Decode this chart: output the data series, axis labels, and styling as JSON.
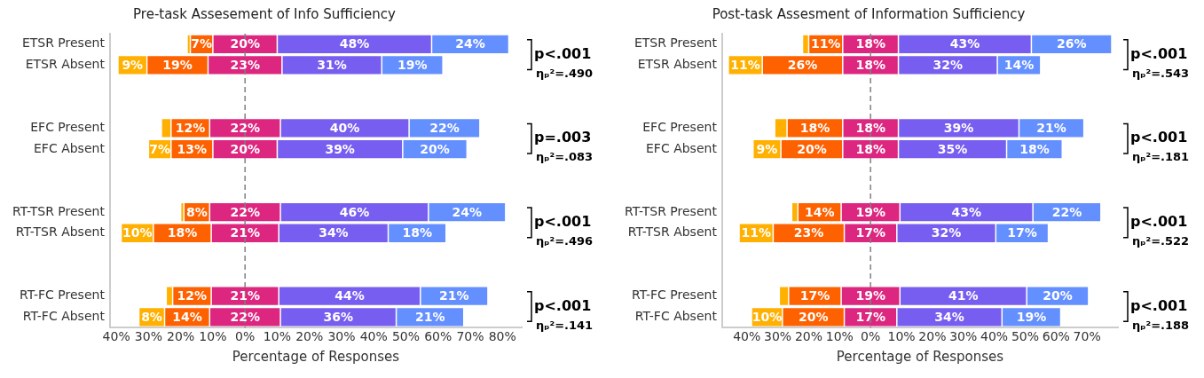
{
  "chart_data": [
    {
      "type": "bar",
      "orientation": "horizontal",
      "title": "Pre-task Assesement of Info Sufficiency",
      "xlabel": "Percentage of Responses",
      "categories": [
        "ETSR Present",
        "ETSR Absent",
        null,
        null,
        "EFC Present",
        "EFC Absent",
        null,
        null,
        "RT-TSR Present",
        "RT-TSR Absent",
        null,
        null,
        "RT-FC Present",
        "RT-FC Absent"
      ],
      "series": [
        {
          "color": "#ffb000",
          "values": [
            1,
            9,
            null,
            null,
            3,
            7,
            null,
            null,
            1,
            10,
            null,
            null,
            2,
            8
          ],
          "base": [
            -18,
            -39.5,
            null,
            null,
            -26,
            -30,
            null,
            null,
            -20,
            -38.5,
            null,
            null,
            -24.5,
            -33
          ],
          "value_labels": [
            null,
            "9%",
            null,
            null,
            null,
            "7%",
            null,
            null,
            null,
            "10%",
            null,
            null,
            null,
            "8%"
          ]
        },
        {
          "color": "#fe6100",
          "values": [
            7,
            19,
            null,
            null,
            12,
            13,
            null,
            null,
            8,
            18,
            null,
            null,
            12,
            14
          ],
          "base": [
            -17,
            -30.5,
            null,
            null,
            -23,
            -23,
            null,
            null,
            -19,
            -28.5,
            null,
            null,
            -22.5,
            -25
          ],
          "value_labels": [
            "7%",
            "19%",
            null,
            null,
            "12%",
            "13%",
            null,
            null,
            "8%",
            "18%",
            null,
            null,
            "12%",
            "14%"
          ]
        },
        {
          "color": "#dc267f",
          "values": [
            20,
            23,
            null,
            null,
            22,
            20,
            null,
            null,
            22,
            21,
            null,
            null,
            21,
            22
          ],
          "base": [
            -10,
            -11.5,
            null,
            null,
            -11,
            -10,
            null,
            null,
            -11,
            -10.5,
            null,
            null,
            -10.5,
            -11
          ],
          "value_labels": [
            "20%",
            "23%",
            null,
            null,
            "22%",
            "20%",
            null,
            null,
            "22%",
            "21%",
            null,
            null,
            "21%",
            "22%"
          ]
        },
        {
          "color": "#785ef0",
          "values": [
            48,
            31,
            null,
            null,
            40,
            39,
            null,
            null,
            46,
            34,
            null,
            null,
            44,
            36
          ],
          "base": [
            10,
            11.5,
            null,
            null,
            11,
            10,
            null,
            null,
            11,
            10.5,
            null,
            null,
            10.5,
            11
          ],
          "value_labels": [
            "48%",
            "31%",
            null,
            null,
            "40%",
            "39%",
            null,
            null,
            "46%",
            "34%",
            null,
            null,
            "44%",
            "36%"
          ]
        },
        {
          "color": "#648fff",
          "values": [
            24,
            19,
            null,
            null,
            22,
            20,
            null,
            null,
            24,
            18,
            null,
            null,
            21,
            21
          ],
          "base": [
            58,
            42.5,
            null,
            null,
            51,
            49,
            null,
            null,
            57,
            44.5,
            null,
            null,
            54.5,
            47
          ],
          "value_labels": [
            "24%",
            "19%",
            null,
            null,
            "22%",
            "20%",
            null,
            null,
            "24%",
            "18%",
            null,
            null,
            "21%",
            "21%"
          ]
        }
      ],
      "xlim": [
        -42,
        86
      ],
      "xticks": [
        {
          "value": -40,
          "label": "40%"
        },
        {
          "value": -30,
          "label": "30%"
        },
        {
          "value": -20,
          "label": "20%"
        },
        {
          "value": -10,
          "label": "10%"
        },
        {
          "value": 0,
          "label": "0%"
        },
        {
          "value": 10,
          "label": "10%"
        },
        {
          "value": 20,
          "label": "20%"
        },
        {
          "value": 30,
          "label": "30%"
        },
        {
          "value": 40,
          "label": "40%"
        },
        {
          "value": 50,
          "label": "50%"
        },
        {
          "value": 60,
          "label": "60%"
        },
        {
          "value": 70,
          "label": "70%"
        },
        {
          "value": 80,
          "label": "80%"
        }
      ],
      "ref_lines": [
        {
          "axis": "x",
          "value": 0,
          "color": "#808080",
          "line_style": "dashed"
        }
      ],
      "annotations": [
        "p<.001",
        "ηₚ²=.490",
        "p=.003",
        "ηₚ²=.083",
        "p<.001",
        "ηₚ²=.496",
        "p<.001",
        "ηₚ²=.141"
      ],
      "grid": false,
      "legend": false
    },
    {
      "type": "bar",
      "orientation": "horizontal",
      "title": "Post-task Assesment of Information Sufficiency",
      "xlabel": "Percentage of Responses",
      "categories": [
        "ETSR Present",
        "ETSR Absent",
        null,
        null,
        "EFC Present",
        "EFC Absent",
        null,
        null,
        "RT-TSR Present",
        "RT-TSR Absent",
        null,
        null,
        "RT-FC Present",
        "RT-FC Absent"
      ],
      "series": [
        {
          "color": "#ffb000",
          "values": [
            2,
            11,
            null,
            null,
            4,
            9,
            null,
            null,
            2,
            11,
            null,
            null,
            3,
            10
          ],
          "base": [
            -22,
            -46,
            null,
            null,
            -31,
            -38,
            null,
            null,
            -25.5,
            -42.5,
            null,
            null,
            -29.5,
            -38.5
          ],
          "value_labels": [
            null,
            "11%",
            null,
            null,
            null,
            "9%",
            null,
            null,
            null,
            "11%",
            null,
            null,
            null,
            "10%"
          ]
        },
        {
          "color": "#fe6100",
          "values": [
            11,
            26,
            null,
            null,
            18,
            20,
            null,
            null,
            14,
            23,
            null,
            null,
            17,
            20
          ],
          "base": [
            -20,
            -35,
            null,
            null,
            -27,
            -29,
            null,
            null,
            -23.5,
            -31.5,
            null,
            null,
            -26.5,
            -28.5
          ],
          "value_labels": [
            "11%",
            "26%",
            null,
            null,
            "18%",
            "20%",
            null,
            null,
            "14%",
            "23%",
            null,
            null,
            "17%",
            "20%"
          ]
        },
        {
          "color": "#dc267f",
          "values": [
            18,
            18,
            null,
            null,
            18,
            18,
            null,
            null,
            19,
            17,
            null,
            null,
            19,
            17
          ],
          "base": [
            -9,
            -9,
            null,
            null,
            -9,
            -9,
            null,
            null,
            -9.5,
            -8.5,
            null,
            null,
            -9.5,
            -8.5
          ],
          "value_labels": [
            "18%",
            "18%",
            null,
            null,
            "18%",
            "18%",
            null,
            null,
            "19%",
            "17%",
            null,
            null,
            "19%",
            "17%"
          ]
        },
        {
          "color": "#785ef0",
          "values": [
            43,
            32,
            null,
            null,
            39,
            35,
            null,
            null,
            43,
            32,
            null,
            null,
            41,
            34
          ],
          "base": [
            9,
            9,
            null,
            null,
            9,
            9,
            null,
            null,
            9.5,
            8.5,
            null,
            null,
            9.5,
            8.5
          ],
          "value_labels": [
            "43%",
            "32%",
            null,
            null,
            "39%",
            "35%",
            null,
            null,
            "43%",
            "32%",
            null,
            null,
            "41%",
            "34%"
          ]
        },
        {
          "color": "#648fff",
          "values": [
            26,
            14,
            null,
            null,
            21,
            18,
            null,
            null,
            22,
            17,
            null,
            null,
            20,
            19
          ],
          "base": [
            52,
            41,
            null,
            null,
            48,
            44,
            null,
            null,
            52.5,
            40.5,
            null,
            null,
            50.5,
            42.5
          ],
          "value_labels": [
            "26%",
            "14%",
            null,
            null,
            "21%",
            "18%",
            null,
            null,
            "22%",
            "17%",
            null,
            null,
            "20%",
            "19%"
          ]
        }
      ],
      "xlim": [
        -48,
        80
      ],
      "xticks": [
        {
          "value": -40,
          "label": "40%"
        },
        {
          "value": -30,
          "label": "30%"
        },
        {
          "value": -20,
          "label": "20%"
        },
        {
          "value": -10,
          "label": "10%"
        },
        {
          "value": 0,
          "label": "0%"
        },
        {
          "value": 10,
          "label": "10%"
        },
        {
          "value": 20,
          "label": "20%"
        },
        {
          "value": 30,
          "label": "30%"
        },
        {
          "value": 40,
          "label": "40%"
        },
        {
          "value": 50,
          "label": "50%"
        },
        {
          "value": 60,
          "label": "60%"
        },
        {
          "value": 70,
          "label": "70%"
        }
      ],
      "ref_lines": [
        {
          "axis": "x",
          "value": 0,
          "color": "#808080",
          "line_style": "dashed"
        }
      ],
      "annotations": [
        "p<.001",
        "ηₚ²=.543",
        "p<.001",
        "ηₚ²=.181",
        "p<.001",
        "ηₚ²=.522",
        "p<.001",
        "ηₚ²=.188"
      ],
      "grid": false,
      "legend": false
    }
  ]
}
